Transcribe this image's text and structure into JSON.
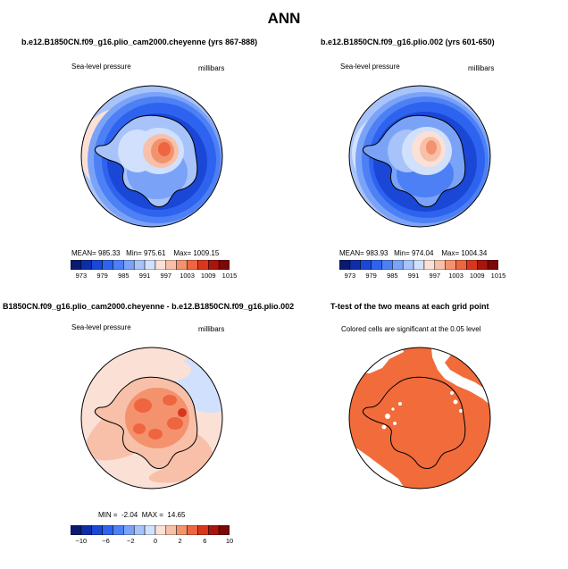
{
  "title": "ANN",
  "colors": {
    "land_outline": "#000000",
    "significant_fill": "#f26b3a"
  },
  "panels": [
    {
      "title": "b.e12.B1850CN.f09_g16.plio_cam2000.cheyenne (yrs 867-888)",
      "left_label": "Sea-level pressure",
      "right_label": "millibars",
      "stats": {
        "mean_label": "MEAN=",
        "mean": "985.33",
        "min_label": "Min=",
        "min": "975.61",
        "max_label": "Max=",
        "max": "1009.15"
      },
      "colorbar": {
        "colors": [
          "#0a1a6e",
          "#0d2ea8",
          "#1a47d6",
          "#2e63ef",
          "#4d80f5",
          "#7aa3f8",
          "#a7c3fa",
          "#d1e0fc",
          "#fbe0d6",
          "#f8c0a8",
          "#f4926e",
          "#ee6540",
          "#d8371e",
          "#a8150d",
          "#7a0907"
        ],
        "labels": [
          "973",
          "979",
          "985",
          "991",
          "997",
          "1003",
          "1009",
          "1015"
        ]
      }
    },
    {
      "title": "b.e12.B1850CN.f09_g16.plio.002 (yrs 601-650)",
      "left_label": "Sea-level pressure",
      "right_label": "millibars",
      "stats": {
        "mean_label": "MEAN=",
        "mean": "983.93",
        "min_label": "Min=",
        "min": "974.04",
        "max_label": "Max=",
        "max": "1004.34"
      },
      "colorbar": {
        "colors": [
          "#0a1a6e",
          "#0d2ea8",
          "#1a47d6",
          "#2e63ef",
          "#4d80f5",
          "#7aa3f8",
          "#a7c3fa",
          "#d1e0fc",
          "#fbe0d6",
          "#f8c0a8",
          "#f4926e",
          "#ee6540",
          "#d8371e",
          "#a8150d",
          "#7a0907"
        ],
        "labels": [
          "973",
          "979",
          "985",
          "991",
          "997",
          "1003",
          "1009",
          "1015"
        ]
      }
    },
    {
      "title": "B1850CN.f09_g16.plio_cam2000.cheyenne - b.e12.B1850CN.f09_g16.plio.002",
      "left_label": "Sea-level pressure",
      "right_label": "millibars",
      "stats": {
        "min_label": "MIN =",
        "min": "-2.04",
        "max_label": "MAX =",
        "max": "14.65"
      },
      "colorbar": {
        "colors": [
          "#0a1a6e",
          "#0d2ea8",
          "#1a47d6",
          "#2e63ef",
          "#4d80f5",
          "#7aa3f8",
          "#a7c3fa",
          "#d1e0fc",
          "#fbe0d6",
          "#f8c0a8",
          "#f4926e",
          "#ee6540",
          "#d8371e",
          "#a8150d",
          "#7a0907"
        ],
        "labels": [
          "−10",
          "−6",
          "−2",
          "0",
          "2",
          "6",
          "10"
        ]
      }
    },
    {
      "title": "T-test of the two means at each grid point",
      "left_label": "Colored cells are significant at the 0.05 level"
    }
  ]
}
